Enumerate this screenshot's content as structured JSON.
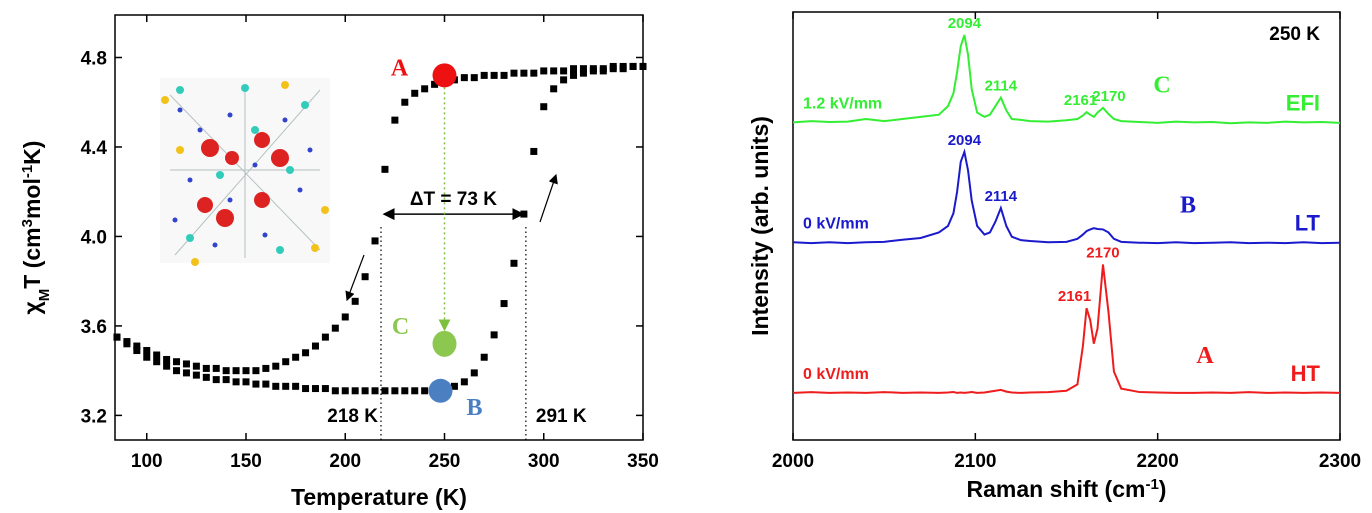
{
  "chart_data": [
    {
      "type": "scatter",
      "xlabel": "Temperature (K)",
      "ylabel": [
        "χ",
        "M",
        "T (cm",
        "3",
        "mol",
        "-1",
        "K)"
      ],
      "xlim": [
        84,
        350
      ],
      "ylim": [
        3.09,
        4.99
      ],
      "xticks": [
        100,
        150,
        200,
        250,
        300,
        350
      ],
      "yticks": [
        3.2,
        3.6,
        {
          "value": 4,
          "label": "4.0"
        },
        4.4,
        4.8
      ],
      "x": [
        85,
        90,
        95,
        100,
        105,
        110,
        115,
        120,
        125,
        130,
        135,
        140,
        145,
        150,
        155,
        160,
        165,
        170,
        175,
        180,
        185,
        190,
        195,
        200,
        205,
        210,
        215,
        220,
        225,
        230,
        235,
        240,
        245,
        250,
        255,
        260,
        265,
        270,
        275,
        280,
        285,
        290,
        295,
        300,
        305,
        310,
        315,
        320,
        325,
        330,
        335,
        340,
        345,
        350
      ],
      "series": [
        {
          "color": "#000000",
          "values": [
            3.55,
            3.53,
            3.51,
            3.49,
            3.47,
            3.45,
            3.44,
            3.43,
            3.42,
            3.41,
            3.41,
            3.4,
            3.4,
            3.4,
            3.4,
            3.41,
            3.42,
            3.44,
            3.46,
            3.48,
            3.51,
            3.55,
            3.59,
            3.64,
            3.71,
            3.82,
            3.98,
            4.3,
            4.52,
            4.6,
            4.64,
            4.66,
            4.68,
            4.7,
            4.7,
            4.71,
            4.71,
            4.72,
            4.72,
            4.72,
            4.73,
            4.73,
            4.73,
            4.74,
            4.74,
            4.74,
            4.75,
            4.75,
            4.75,
            4.75,
            4.76,
            4.76,
            4.76,
            4.76
          ]
        },
        {
          "color": "#000000",
          "values": [
            3.55,
            3.52,
            3.49,
            3.46,
            3.44,
            3.42,
            3.4,
            3.39,
            3.38,
            3.37,
            3.36,
            3.36,
            3.35,
            3.35,
            3.34,
            3.34,
            3.33,
            3.33,
            3.33,
            3.32,
            3.32,
            3.32,
            3.31,
            3.31,
            3.31,
            3.31,
            3.31,
            3.31,
            3.31,
            3.31,
            3.31,
            3.31,
            3.31,
            3.32,
            3.33,
            3.35,
            3.39,
            3.46,
            3.56,
            3.7,
            3.88,
            4.1,
            4.38,
            4.58,
            4.66,
            4.7,
            4.72,
            4.73,
            4.74,
            4.74,
            4.75,
            4.75,
            4.76,
            4.76
          ]
        }
      ],
      "points": [
        {
          "label": "A",
          "x": 250,
          "y": 4.72,
          "color": "#ee1111"
        },
        {
          "label": "B",
          "x": 248,
          "y": 3.31,
          "color": "#4a7fc1"
        },
        {
          "label": "C",
          "x": 250,
          "y": 3.52,
          "color": "#8cc850"
        }
      ],
      "transitions": [
        {
          "label": "218 K",
          "x": 218
        },
        {
          "label": "291 K",
          "x": 291
        }
      ],
      "delta": {
        "label": "ΔT = 73 K",
        "y": 4.1
      }
    },
    {
      "type": "line",
      "xlabel": [
        "Raman shift (cm",
        "-1",
        ")"
      ],
      "ylabel": "Intensity (arb. units)",
      "annotation": "250 K",
      "xlim": [
        2000,
        2300
      ],
      "ylim": [
        0,
        10
      ],
      "xticks": [
        2000,
        2100,
        2200,
        2300
      ],
      "x": [
        2000,
        2010,
        2020,
        2030,
        2040,
        2050,
        2060,
        2070,
        2080,
        2085,
        2088,
        2090,
        2092,
        2094,
        2096,
        2098,
        2101,
        2105,
        2108,
        2111,
        2114,
        2117,
        2120,
        2125,
        2130,
        2140,
        2150,
        2156,
        2159,
        2161,
        2163,
        2165,
        2167,
        2170,
        2173,
        2176,
        2180,
        2190,
        2200,
        2210,
        2220,
        2230,
        2240,
        2250,
        2260,
        2270,
        2280,
        2290,
        2300
      ],
      "series": [
        {
          "name": "EFI",
          "field": "1.2 kV/mm",
          "letter": "C",
          "color": "#33ee33",
          "peaks": [
            2094,
            2114,
            2161,
            2170
          ],
          "values": [
            7.42,
            7.45,
            7.43,
            7.44,
            7.5,
            7.45,
            7.5,
            7.55,
            7.6,
            7.8,
            8.1,
            8.6,
            9.2,
            9.46,
            9.0,
            8.2,
            7.65,
            7.55,
            7.6,
            7.8,
            8.0,
            7.7,
            7.5,
            7.48,
            7.45,
            7.44,
            7.47,
            7.5,
            7.58,
            7.66,
            7.6,
            7.55,
            7.65,
            7.76,
            7.62,
            7.5,
            7.45,
            7.43,
            7.41,
            7.44,
            7.42,
            7.43,
            7.4,
            7.42,
            7.41,
            7.44,
            7.42,
            7.43,
            7.41
          ]
        },
        {
          "name": "LT",
          "field": "0 kV/mm",
          "letter": "B",
          "color": "#1a1acc",
          "peaks": [
            2094,
            2114
          ],
          "values": [
            4.62,
            4.6,
            4.62,
            4.6,
            4.62,
            4.63,
            4.68,
            4.72,
            4.85,
            5.0,
            5.3,
            5.8,
            6.5,
            6.73,
            6.3,
            5.6,
            5.0,
            4.8,
            4.85,
            5.1,
            5.42,
            5.0,
            4.75,
            4.67,
            4.65,
            4.62,
            4.63,
            4.7,
            4.8,
            4.88,
            4.92,
            4.95,
            4.93,
            4.92,
            4.85,
            4.7,
            4.63,
            4.61,
            4.6,
            4.62,
            4.6,
            4.61,
            4.62,
            4.6,
            4.61,
            4.6,
            4.62,
            4.6,
            4.61
          ]
        },
        {
          "name": "HT",
          "field": "0 kV/mm",
          "letter": "A",
          "color": "#ee1c1c",
          "peaks": [
            2161,
            2170
          ],
          "values": [
            1.1,
            1.12,
            1.1,
            1.11,
            1.1,
            1.12,
            1.1,
            1.11,
            1.1,
            1.11,
            1.12,
            1.1,
            1.11,
            1.1,
            1.11,
            1.12,
            1.1,
            1.11,
            1.13,
            1.15,
            1.17,
            1.13,
            1.11,
            1.1,
            1.11,
            1.12,
            1.15,
            1.3,
            2.2,
            3.08,
            2.8,
            2.25,
            2.6,
            4.1,
            3.0,
            1.6,
            1.2,
            1.12,
            1.11,
            1.1,
            1.1,
            1.11,
            1.1,
            1.12,
            1.1,
            1.11,
            1.1,
            1.11,
            1.1
          ]
        }
      ]
    }
  ]
}
